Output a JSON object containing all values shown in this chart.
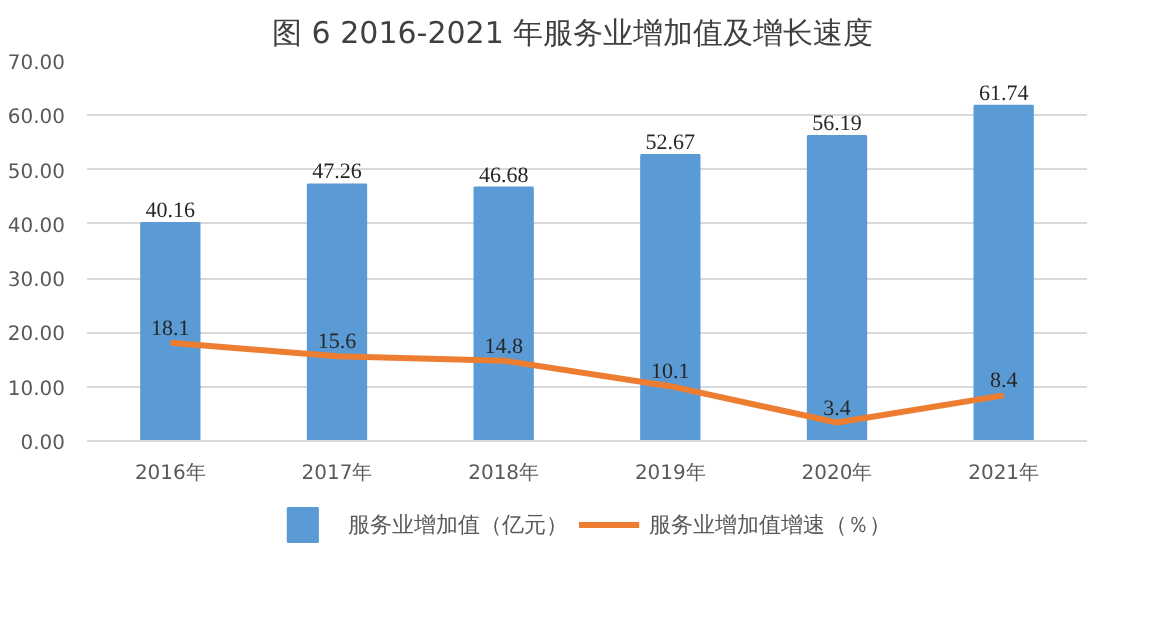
{
  "chart_data": {
    "type": "bar",
    "title": "图 6    2016-2021 年服务业增加值及增长速度",
    "categories": [
      "2016年",
      "2017年",
      "2018年",
      "2019年",
      "2020年",
      "2021年"
    ],
    "series": [
      {
        "name": "服务业增加值（亿元）",
        "color": "#5b9bd5",
        "values": [
          40.16,
          47.26,
          46.68,
          52.67,
          56.19,
          61.74
        ]
      },
      {
        "name": "服务业增加值增速（％）",
        "type": "line",
        "color": "#ed7d31",
        "values": [
          18.1,
          15.6,
          14.8,
          10.1,
          3.4,
          8.4
        ]
      }
    ],
    "ylim": [
      0,
      70
    ],
    "yticks": [
      {
        "value": 0,
        "label": "0.00"
      },
      {
        "value": 10,
        "label": "10.00"
      },
      {
        "value": 20,
        "label": "20.00"
      },
      {
        "value": 30,
        "label": "30.00"
      },
      {
        "value": 40,
        "label": "40.00"
      },
      {
        "value": 50,
        "label": "50.00"
      },
      {
        "value": 60,
        "label": "60.00"
      },
      {
        "value": 70,
        "label": "70.00"
      }
    ],
    "grid": "y",
    "legend": "bottom",
    "data_labels": true,
    "marker": "none",
    "line_style": "solid"
  }
}
